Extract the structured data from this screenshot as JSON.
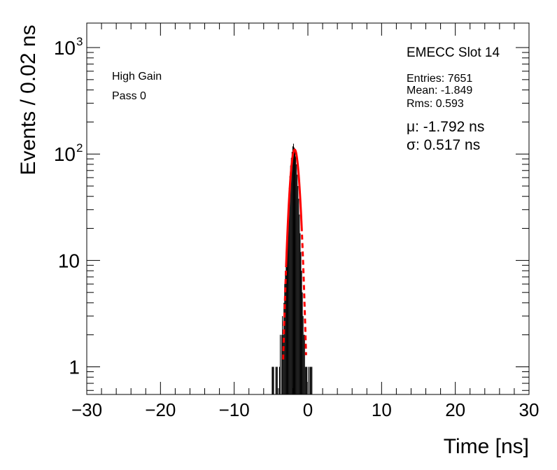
{
  "chart_data": {
    "type": "bar",
    "title": "",
    "xlabel": "Time [ns]",
    "ylabel": "Events / 0.02 ns",
    "xlim": [
      -30,
      30
    ],
    "ylim": [
      0.55,
      1700
    ],
    "y_scale": "log",
    "grid": false,
    "x_ticks": [
      -30,
      -20,
      -10,
      0,
      10,
      20,
      30
    ],
    "x_tick_labels": [
      "−30",
      "−20",
      "−10",
      "0",
      "10",
      "20",
      "30"
    ],
    "y_ticks": [
      {
        "value": 1,
        "label": "1",
        "sup": ""
      },
      {
        "value": 10,
        "label": "10",
        "sup": ""
      },
      {
        "value": 100,
        "label": "10",
        "sup": "2"
      },
      {
        "value": 1000,
        "label": "10",
        "sup": "3"
      }
    ],
    "annotations_left": [
      "High Gain",
      "Pass 0"
    ],
    "stats": {
      "header": "EMECC Slot 14",
      "entries": "Entries: 7651",
      "mean": "Mean: -1.849",
      "rms": "Rms: 0.593",
      "mu": "μ: -1.792 ns",
      "sigma": "σ: 0.517 ns"
    },
    "series": [
      {
        "kind": "histogram",
        "color": "#000000",
        "x": [
          -4.85,
          -4.75,
          -4.65,
          -4.35,
          -4.25,
          -4.15,
          -3.85,
          -3.75,
          -3.55,
          -3.45,
          -3.35,
          -3.25,
          -3.15,
          -3.05,
          -2.95,
          -2.85,
          -2.75,
          -2.65,
          -2.55,
          -2.45,
          -2.35,
          -2.25,
          -2.15,
          -2.05,
          -1.95,
          -1.85,
          -1.75,
          -1.65,
          -1.55,
          -1.45,
          -1.35,
          -1.25,
          -1.15,
          -1.05,
          -0.95,
          -0.85,
          -0.75,
          -0.65,
          -0.55,
          -0.45,
          -0.35,
          -0.25,
          -0.15,
          0.05,
          0.25,
          0.35,
          0.45,
          0.55
        ],
        "values": [
          1,
          1,
          1,
          1,
          1,
          1,
          1,
          2,
          2,
          3,
          2,
          4,
          6,
          8,
          12,
          17,
          25,
          35,
          48,
          62,
          78,
          92,
          105,
          118,
          125,
          115,
          108,
          95,
          80,
          64,
          50,
          38,
          27,
          18,
          12,
          8,
          5,
          3,
          2,
          2,
          1,
          1,
          1,
          1,
          1,
          1,
          1,
          1
        ]
      },
      {
        "kind": "gaussian_fit",
        "color": "#ff0000",
        "amplitude": 110,
        "mean": -1.792,
        "sigma": 0.517,
        "fit_range": [
          -2.95,
          -0.85
        ],
        "draw_range": [
          -3.35,
          -0.25
        ]
      }
    ]
  }
}
